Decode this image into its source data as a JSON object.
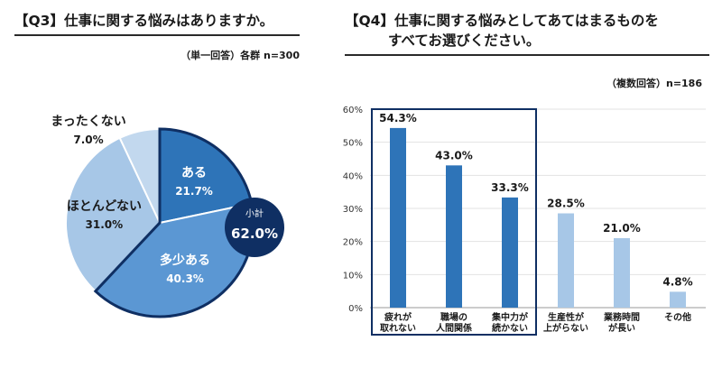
{
  "q3": {
    "title": "【Q3】仕事に関する悩みはありますか。",
    "note": "（単一回答）各群 n=300"
  },
  "q4": {
    "title_line1": "【Q4】仕事に関する悩みとしてあてはまるものを",
    "title_line2": "すべてお選びください。",
    "note": "（複数回答）n=186"
  },
  "colors": {
    "dark": "#2e74b8",
    "mid": "#5b97d3",
    "light": "#a7c7e7",
    "lighter": "#c2d8ee",
    "navy": "#0f2f63",
    "bar_dark": "#2e74b8",
    "bar_light": "#a7c7e7"
  },
  "chart_data": [
    {
      "type": "pie",
      "slices": [
        {
          "name": "ある",
          "value": 21.7,
          "label": "21.7%"
        },
        {
          "name": "多少ある",
          "value": 40.3,
          "label": "40.3%"
        },
        {
          "name": "ほとんどない",
          "value": 31.0,
          "label": "31.0%"
        },
        {
          "name": "まったくない",
          "value": 7.0,
          "label": "7.0%"
        }
      ],
      "subtotal": {
        "label": "小計",
        "value": "62.0%"
      }
    },
    {
      "type": "bar",
      "categories": [
        [
          "疲れが",
          "取れない"
        ],
        [
          "職場の",
          "人間関係"
        ],
        [
          "集中力が",
          "続かない"
        ],
        [
          "生産性が",
          "上がらない"
        ],
        [
          "業務時間",
          "が長い"
        ],
        [
          "その他"
        ]
      ],
      "values": [
        54.3,
        43.0,
        33.3,
        28.5,
        21.0,
        4.8
      ],
      "value_labels": [
        "54.3%",
        "43.0%",
        "33.3%",
        "28.5%",
        "21.0%",
        "4.8%"
      ],
      "ylim": [
        0,
        60
      ],
      "yticks": [
        "0%",
        "10%",
        "20%",
        "30%",
        "40%",
        "50%",
        "60%"
      ],
      "highlighted": [
        0,
        1,
        2
      ]
    }
  ]
}
